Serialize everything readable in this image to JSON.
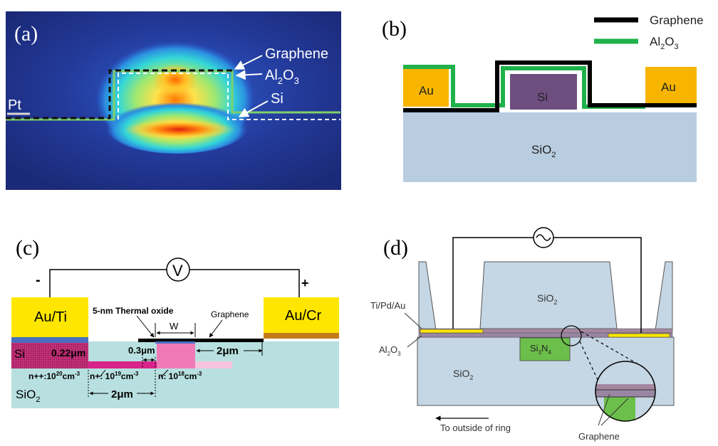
{
  "panel_a": {
    "label": "(a)",
    "pt": "Pt",
    "graphene": "Graphene",
    "al2o3_main": "Al",
    "al2o3_sub1": "2",
    "al2o3_mid": "O",
    "al2o3_sub2": "3",
    "si": "Si"
  },
  "panel_b": {
    "label": "(b)",
    "legend_graphene": "Graphene",
    "legend_al_main": "Al",
    "legend_al_sub1": "2",
    "legend_al_mid": "O",
    "legend_al_sub2": "3",
    "au_left": "Au",
    "au_right": "Au",
    "si": "Si",
    "sio2_main": "SiO",
    "sio2_sub": "2",
    "colors": {
      "graphene": "#000000",
      "al2o3": "#1fb14a",
      "au": "#f7b500",
      "si": "#6e4e7f",
      "sio2": "#b9cde0"
    }
  },
  "panel_c": {
    "label": "(c)",
    "voltmeter": "V",
    "minus": "-",
    "plus": "+",
    "au_ti": "Au/Ti",
    "au_cr": "Au/Cr",
    "thermal_oxide": "5-nm Thermal oxide",
    "w": "W",
    "graphene": "Graphene",
    "si": "Si",
    "thickness": "0.22μm",
    "gap_03": "0.3μm",
    "gap_2_right": "2μm",
    "gap_2_bottom": "2μm",
    "npp_main": "n++:10",
    "npp_exp": "20",
    "npp_unit": "cm",
    "npp_unit_exp": "-3",
    "np_main": "n+: 10",
    "np_exp": "19",
    "np_unit": "cm",
    "np_unit_exp": "-3",
    "n_main": "n: 10",
    "n_exp": "18",
    "n_unit": "cm",
    "n_unit_exp": "-3",
    "sio2_main": "SiO",
    "sio2_sub": "2"
  },
  "panel_d": {
    "label": "(d)",
    "sio2_top_main": "SiO",
    "sio2_top_sub": "2",
    "ti_pd_au": "Ti/Pd/Au",
    "al2o3_main": "Al",
    "al2o3_sub1": "2",
    "al2o3_mid": "O",
    "al2o3_sub2": "3",
    "si3n4_main": "Si",
    "si3n4_sub1": "3",
    "si3n4_mid": "N",
    "si3n4_sub2": "4",
    "sio2_bottom_main": "SiO",
    "sio2_bottom_sub": "2",
    "outside_ring": "To outside of ring",
    "graphene": "Graphene"
  }
}
